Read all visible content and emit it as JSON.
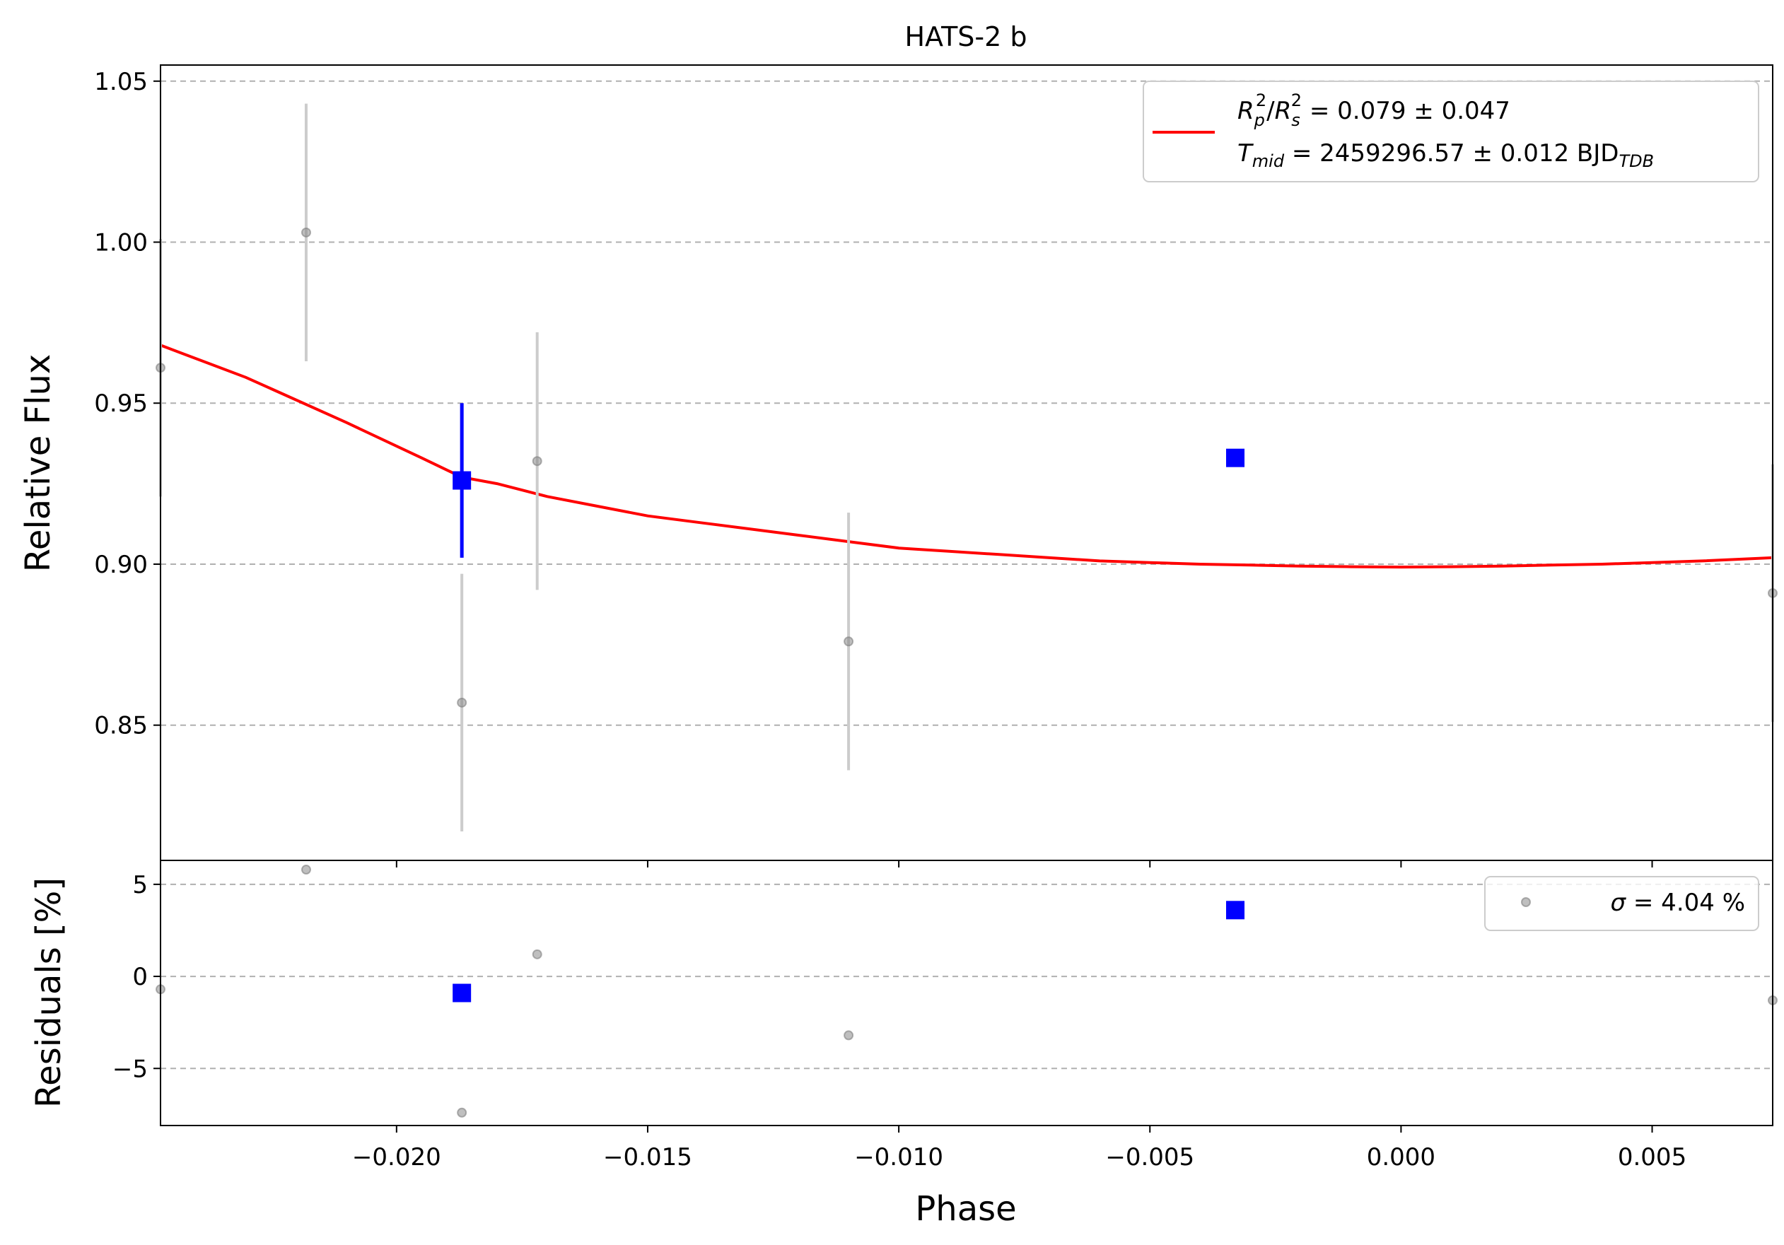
{
  "chart_data": [
    {
      "panel": "main",
      "type": "scatter",
      "title": "HATS-2 b",
      "xlabel": "",
      "ylabel": "Relative Flux",
      "xlim": [
        -0.0247,
        0.0074
      ],
      "ylim": [
        0.808,
        1.055
      ],
      "xticks": [
        -0.02,
        -0.015,
        -0.01,
        -0.005,
        0.0,
        0.005
      ],
      "yticks": [
        0.85,
        0.9,
        0.95,
        1.0,
        1.05
      ],
      "ytick_labels": [
        "0.85",
        "0.90",
        "0.95",
        "1.00",
        "1.05"
      ],
      "grid": "horizontal dashed",
      "legend_position": "top-right",
      "legend": {
        "line1": {
          "lhs": "R",
          "lhs_sub": "p",
          "lhs_sup": "2",
          "slash": "/",
          "rhs": "R",
          "rhs_sub": "s",
          "rhs_sup": "2",
          "value": " = 0.079 ± 0.047"
        },
        "line2": {
          "sym": "T",
          "sym_sub": "mid",
          "value": " = 2459296.57 ± 0.012 BJD",
          "unit_sub": "TDB"
        }
      },
      "series": [
        {
          "kind": "raw",
          "color": "#808080",
          "errorbar_color": "#cccccc",
          "x": [
            -0.0247,
            -0.0218,
            -0.0187,
            -0.0172,
            -0.011,
            0.0074
          ],
          "y": [
            0.961,
            1.003,
            0.857,
            0.932,
            0.876,
            0.891
          ],
          "yerr": [
            0.04,
            0.04,
            0.04,
            0.04,
            0.04,
            0.04
          ]
        },
        {
          "kind": "binned",
          "color": "#0000ff",
          "x": [
            -0.0187,
            -0.0033
          ],
          "y": [
            0.926,
            0.933
          ],
          "yerr": [
            0.024,
            0.0
          ]
        },
        {
          "kind": "model",
          "color": "#ff0000",
          "x": [
            -0.0247,
            -0.023,
            -0.021,
            -0.0195,
            -0.0187,
            -0.018,
            -0.0175,
            -0.017,
            -0.016,
            -0.015,
            -0.014,
            -0.013,
            -0.012,
            -0.011,
            -0.01,
            -0.009,
            -0.008,
            -0.007,
            -0.006,
            -0.005,
            -0.004,
            -0.003,
            -0.002,
            -0.001,
            0.0,
            0.001,
            0.002,
            0.003,
            0.004,
            0.005,
            0.006,
            0.0074
          ],
          "y": [
            0.968,
            0.958,
            0.944,
            0.933,
            0.927,
            0.925,
            0.923,
            0.921,
            0.918,
            0.915,
            0.913,
            0.911,
            0.909,
            0.907,
            0.905,
            0.904,
            0.903,
            0.902,
            0.901,
            0.9005,
            0.9,
            0.8997,
            0.8994,
            0.8992,
            0.8991,
            0.8992,
            0.8994,
            0.8997,
            0.9,
            0.9005,
            0.901,
            0.902
          ]
        }
      ]
    },
    {
      "panel": "residuals",
      "type": "scatter",
      "title": "",
      "xlabel": "Phase",
      "ylabel": "Residuals [%]",
      "xlim": [
        -0.0247,
        0.0074
      ],
      "ylim": [
        -8.1,
        6.3
      ],
      "xticks": [
        -0.02,
        -0.015,
        -0.01,
        -0.005,
        0.0,
        0.005
      ],
      "xtick_labels": [
        "−0.020",
        "−0.015",
        "−0.010",
        "−0.005",
        "0.000",
        "0.005"
      ],
      "yticks": [
        -5,
        0,
        5
      ],
      "ytick_labels": [
        "−5",
        "0",
        "5"
      ],
      "grid": "horizontal dashed",
      "legend_position": "top-right",
      "legend": {
        "sym": "σ",
        "value": " = 4.04 %"
      },
      "series": [
        {
          "kind": "raw",
          "color": "#808080",
          "x": [
            -0.0247,
            -0.0218,
            -0.0187,
            -0.0172,
            -0.011,
            0.0074
          ],
          "y": [
            -0.7,
            5.8,
            -7.4,
            1.2,
            -3.2,
            -1.3
          ]
        },
        {
          "kind": "binned",
          "color": "#0000ff",
          "x": [
            -0.0187,
            -0.0033
          ],
          "y": [
            -0.9,
            3.6
          ]
        }
      ]
    }
  ]
}
